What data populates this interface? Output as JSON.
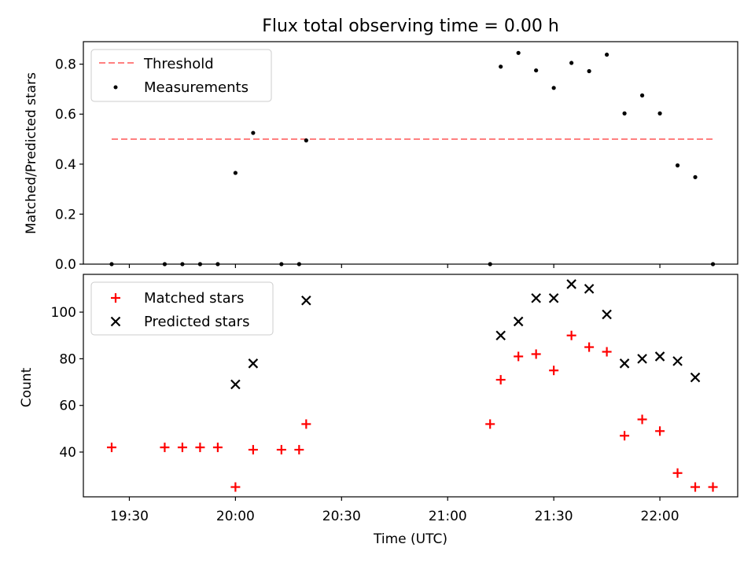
{
  "title": "Flux total observing time = 0.00 h",
  "chart_data": [
    {
      "type": "scatter",
      "ylabel": "Matched/Predicted stars",
      "ylim": [
        0,
        0.89
      ],
      "yticks": [
        {
          "v": 0.0,
          "label": "0.0"
        },
        {
          "v": 0.2,
          "label": "0.2"
        },
        {
          "v": 0.4,
          "label": "0.4"
        },
        {
          "v": 0.6,
          "label": "0.6"
        },
        {
          "v": 0.8,
          "label": "0.8"
        }
      ],
      "legend_position": "top-left",
      "threshold": {
        "name": "Threshold",
        "y": 0.5,
        "x_range": [
          "19:25",
          "22:15"
        ],
        "color": "#ff8080"
      },
      "series": [
        {
          "name": "Measurements",
          "color": "#000000",
          "points": [
            {
              "x": "19:25",
              "y": 0.0
            },
            {
              "x": "19:40",
              "y": 0.0
            },
            {
              "x": "19:45",
              "y": 0.0
            },
            {
              "x": "19:50",
              "y": 0.0
            },
            {
              "x": "19:55",
              "y": 0.0
            },
            {
              "x": "20:00",
              "y": 0.365
            },
            {
              "x": "20:05",
              "y": 0.525
            },
            {
              "x": "20:13",
              "y": 0.0
            },
            {
              "x": "20:18",
              "y": 0.0
            },
            {
              "x": "20:20",
              "y": 0.495
            },
            {
              "x": "21:12",
              "y": 0.0
            },
            {
              "x": "21:15",
              "y": 0.79
            },
            {
              "x": "21:20",
              "y": 0.845
            },
            {
              "x": "21:25",
              "y": 0.775
            },
            {
              "x": "21:30",
              "y": 0.705
            },
            {
              "x": "21:35",
              "y": 0.805
            },
            {
              "x": "21:40",
              "y": 0.772
            },
            {
              "x": "21:45",
              "y": 0.838
            },
            {
              "x": "21:50",
              "y": 0.603
            },
            {
              "x": "21:55",
              "y": 0.675
            },
            {
              "x": "22:00",
              "y": 0.603
            },
            {
              "x": "22:05",
              "y": 0.395
            },
            {
              "x": "22:10",
              "y": 0.348
            },
            {
              "x": "22:15",
              "y": 0.0
            }
          ]
        }
      ]
    },
    {
      "type": "scatter",
      "ylabel": "Count",
      "xlabel": "Time (UTC)",
      "ylim": [
        20.8,
        116.2
      ],
      "yticks": [
        {
          "v": 40,
          "label": "40"
        },
        {
          "v": 60,
          "label": "60"
        },
        {
          "v": 80,
          "label": "80"
        },
        {
          "v": 100,
          "label": "100"
        }
      ],
      "xlim": [
        "19:17",
        "22:22"
      ],
      "xticks": [
        {
          "v": "19:30",
          "label": "19:30"
        },
        {
          "v": "20:00",
          "label": "20:00"
        },
        {
          "v": "20:30",
          "label": "20:30"
        },
        {
          "v": "21:00",
          "label": "21:00"
        },
        {
          "v": "21:30",
          "label": "21:30"
        },
        {
          "v": "22:00",
          "label": "22:00"
        }
      ],
      "legend_position": "top-left",
      "series": [
        {
          "name": "Matched stars",
          "color": "#ff0000",
          "marker": "plus",
          "points": [
            {
              "x": "19:25",
              "y": 42
            },
            {
              "x": "19:40",
              "y": 42
            },
            {
              "x": "19:45",
              "y": 42
            },
            {
              "x": "19:50",
              "y": 42
            },
            {
              "x": "19:55",
              "y": 42
            },
            {
              "x": "20:00",
              "y": 25
            },
            {
              "x": "20:05",
              "y": 41
            },
            {
              "x": "20:13",
              "y": 41
            },
            {
              "x": "20:18",
              "y": 41
            },
            {
              "x": "20:20",
              "y": 52
            },
            {
              "x": "21:12",
              "y": 52
            },
            {
              "x": "21:15",
              "y": 71
            },
            {
              "x": "21:20",
              "y": 81
            },
            {
              "x": "21:25",
              "y": 82
            },
            {
              "x": "21:30",
              "y": 75
            },
            {
              "x": "21:35",
              "y": 90
            },
            {
              "x": "21:40",
              "y": 85
            },
            {
              "x": "21:45",
              "y": 83
            },
            {
              "x": "21:50",
              "y": 47
            },
            {
              "x": "21:55",
              "y": 54
            },
            {
              "x": "22:00",
              "y": 49
            },
            {
              "x": "22:05",
              "y": 31
            },
            {
              "x": "22:10",
              "y": 25
            },
            {
              "x": "22:15",
              "y": 25
            }
          ]
        },
        {
          "name": "Predicted stars",
          "color": "#000000",
          "marker": "x",
          "points": [
            {
              "x": "20:00",
              "y": 69
            },
            {
              "x": "20:05",
              "y": 78
            },
            {
              "x": "20:20",
              "y": 105
            },
            {
              "x": "21:15",
              "y": 90
            },
            {
              "x": "21:20",
              "y": 96
            },
            {
              "x": "21:25",
              "y": 106
            },
            {
              "x": "21:30",
              "y": 106
            },
            {
              "x": "21:35",
              "y": 112
            },
            {
              "x": "21:40",
              "y": 110
            },
            {
              "x": "21:45",
              "y": 99
            },
            {
              "x": "21:50",
              "y": 78
            },
            {
              "x": "21:55",
              "y": 80
            },
            {
              "x": "22:00",
              "y": 81
            },
            {
              "x": "22:05",
              "y": 79
            },
            {
              "x": "22:10",
              "y": 72
            }
          ]
        }
      ]
    }
  ]
}
